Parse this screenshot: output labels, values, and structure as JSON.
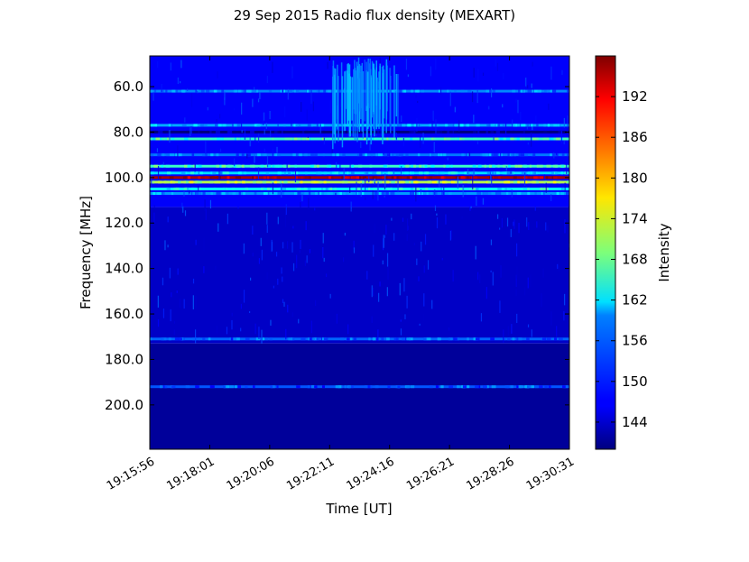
{
  "chart_data": {
    "type": "heatmap",
    "title": "29 Sep 2015 Radio flux density (MEXART)",
    "xlabel": "Time [UT]",
    "ylabel": "Frequency [MHz]",
    "colorbar_label": "Intensity",
    "colormap": "jet",
    "x_ticks": [
      "19:15:56",
      "19:18:01",
      "19:20:06",
      "19:22:11",
      "19:24:16",
      "19:26:21",
      "19:28:26",
      "19:30:31"
    ],
    "y_ticks": [
      "60.0",
      "80.0",
      "100.0",
      "120.0",
      "140.0",
      "160.0",
      "180.0",
      "200.0"
    ],
    "y_tick_values": [
      60,
      80,
      100,
      120,
      140,
      160,
      180,
      200
    ],
    "ylim": [
      219.5,
      46.5
    ],
    "colorbar_ticks": [
      "144",
      "150",
      "156",
      "162",
      "168",
      "174",
      "180",
      "186",
      "192"
    ],
    "colorbar_values": [
      144,
      150,
      156,
      162,
      168,
      174,
      180,
      186,
      192
    ],
    "colorbar_range": [
      140,
      198
    ],
    "horizontal_bands": [
      {
        "freq": 62,
        "intensity": 155
      },
      {
        "freq": 77,
        "intensity": 157
      },
      {
        "freq": 80,
        "intensity": 140
      },
      {
        "freq": 83,
        "intensity": 165
      },
      {
        "freq": 90,
        "intensity": 154
      },
      {
        "freq": 95,
        "intensity": 165
      },
      {
        "freq": 98,
        "intensity": 160
      },
      {
        "freq": 100,
        "intensity": 196
      },
      {
        "freq": 102,
        "intensity": 172
      },
      {
        "freq": 105,
        "intensity": 162
      },
      {
        "freq": 107,
        "intensity": 156
      },
      {
        "freq": 171,
        "intensity": 153
      },
      {
        "freq": 192,
        "intensity": 152
      }
    ],
    "burst_events": [
      {
        "time": "19:22:11",
        "freq_range": [
          47,
          79
        ],
        "intensity": 160
      },
      {
        "time": "19:23:00",
        "freq_range": [
          47,
          79
        ],
        "intensity": 158
      }
    ]
  }
}
